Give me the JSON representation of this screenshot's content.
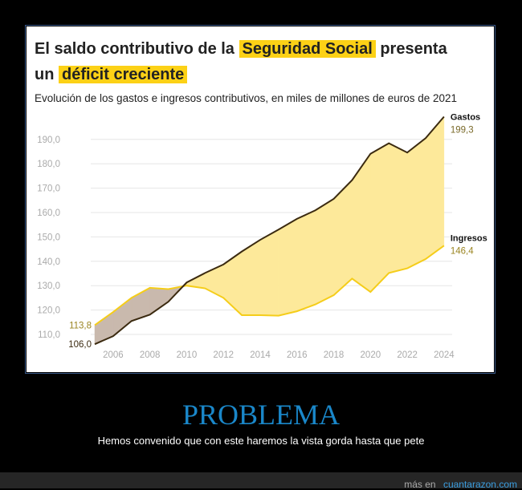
{
  "title": {
    "pre": "El saldo contributivo de la",
    "hl1": "Seguridad Social",
    "mid": "presenta",
    "pre2": "un",
    "hl2": "déficit creciente"
  },
  "subtitle": "Evolución de los gastos e ingresos contributivos, en miles de millones de euros de 2021",
  "colors": {
    "gastos": "#3b2a10",
    "ingresos": "#f5cd1a",
    "deficit_fill": "#fde99a",
    "surplus_fill": "#c9b9ad",
    "highlight": "#fcd116"
  },
  "chart_data": {
    "type": "line",
    "x": [
      2005,
      2006,
      2007,
      2008,
      2009,
      2010,
      2011,
      2012,
      2013,
      2014,
      2015,
      2016,
      2017,
      2018,
      2019,
      2020,
      2021,
      2022,
      2023,
      2024
    ],
    "series": [
      {
        "name": "Gastos",
        "values": [
          106.0,
          109.3,
          115.5,
          118.1,
          123.4,
          131.3,
          135.2,
          138.7,
          144.0,
          148.8,
          153.0,
          157.4,
          160.9,
          165.6,
          173.3,
          184.1,
          188.4,
          184.6,
          190.5,
          199.3
        ]
      },
      {
        "name": "Ingresos",
        "values": [
          113.8,
          119.2,
          125.0,
          129.1,
          128.6,
          130.0,
          128.9,
          125.0,
          117.9,
          117.9,
          117.7,
          119.5,
          122.3,
          126.1,
          132.9,
          127.4,
          135.2,
          137.1,
          140.9,
          146.4
        ]
      }
    ],
    "labels": {
      "gastos_end": "199,3",
      "ingresos_end": "146,4",
      "gastos_start": "106,0",
      "ingresos_start": "113,8"
    },
    "yticks": [
      "110,0",
      "120,0",
      "130,0",
      "140,0",
      "150,0",
      "160,0",
      "170,0",
      "180,0",
      "190,0"
    ],
    "xticks": [
      "2006",
      "2008",
      "2010",
      "2012",
      "2014",
      "2016",
      "2018",
      "2020",
      "2022",
      "2024"
    ],
    "ylim": [
      106,
      200
    ],
    "grid": true
  },
  "caption": "PROBLEMA",
  "description": "Hemos convenido que con este haremos la vista gorda hasta que pete",
  "footer": {
    "pre": "más en",
    "link": "cuantarazon.com"
  }
}
